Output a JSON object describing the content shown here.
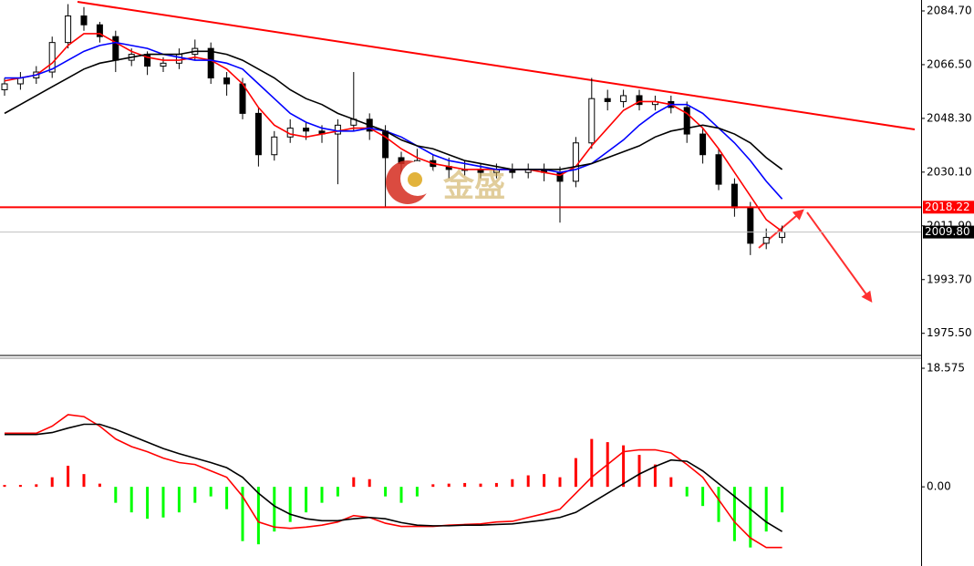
{
  "chart_data": [
    {
      "type": "candlestick",
      "open": [
        2058,
        2060,
        2062,
        2064,
        2074,
        2083,
        2080,
        2076,
        2068,
        2070,
        2066,
        2067,
        2070,
        2072,
        2062,
        2060,
        2050,
        2036,
        2042,
        2045,
        2044,
        2043,
        2046,
        2048,
        2044,
        2035,
        2033,
        2034,
        2032,
        2031,
        2031,
        2030,
        2031,
        2030,
        2031,
        2030,
        2027,
        2040,
        2055,
        2054,
        2056,
        2053,
        2054,
        2052,
        2043,
        2036,
        2026,
        2018,
        2006,
        2008
      ],
      "high": [
        2062,
        2064,
        2066,
        2076,
        2087,
        2086,
        2081,
        2078,
        2072,
        2071,
        2069,
        2072,
        2075,
        2074,
        2064,
        2062,
        2052,
        2044,
        2048,
        2047,
        2046,
        2048,
        2064,
        2050,
        2046,
        2037,
        2038,
        2036,
        2035,
        2034,
        2033,
        2033,
        2033,
        2033,
        2033,
        2032,
        2042,
        2062,
        2058,
        2058,
        2058,
        2056,
        2056,
        2054,
        2045,
        2038,
        2028,
        2020,
        2011,
        2012
      ],
      "low": [
        2056,
        2058,
        2060,
        2062,
        2072,
        2078,
        2074,
        2064,
        2066,
        2063,
        2064,
        2065,
        2068,
        2060,
        2056,
        2048,
        2032,
        2034,
        2040,
        2041,
        2040,
        2026,
        2044,
        2041,
        2018,
        2028,
        2030,
        2029,
        2028,
        2029,
        2028,
        2028,
        2028,
        2028,
        2027,
        2013,
        2025,
        2038,
        2051,
        2052,
        2051,
        2051,
        2050,
        2040,
        2033,
        2024,
        2015,
        2002,
        2004,
        2006
      ],
      "close": [
        2060,
        2062,
        2064,
        2074,
        2083,
        2080,
        2076,
        2068,
        2070,
        2066,
        2067,
        2070,
        2072,
        2062,
        2060,
        2050,
        2036,
        2042,
        2045,
        2044,
        2043,
        2046,
        2048,
        2044,
        2035,
        2033,
        2034,
        2032,
        2031,
        2031,
        2030,
        2031,
        2030,
        2031,
        2030,
        2027,
        2040,
        2055,
        2054,
        2056,
        2053,
        2054,
        2052,
        2043,
        2036,
        2026,
        2018,
        2006,
        2008,
        2009.8
      ],
      "series": [
        {
          "color": "#ff0000",
          "values": [
            2061,
            2062,
            2063,
            2067,
            2073,
            2077,
            2077,
            2074,
            2071,
            2069,
            2068,
            2068,
            2069,
            2068,
            2065,
            2060,
            2052,
            2046,
            2043,
            2042,
            2043,
            2044,
            2045,
            2045,
            2042,
            2038,
            2035,
            2033,
            2032,
            2031,
            2031,
            2031,
            2031,
            2031,
            2030,
            2029,
            2032,
            2039,
            2045,
            2051,
            2054,
            2054,
            2053,
            2050,
            2045,
            2038,
            2030,
            2022,
            2014,
            2010
          ]
        },
        {
          "color": "#0000ff",
          "values": [
            2062,
            2062,
            2063,
            2065,
            2068,
            2071,
            2073,
            2074,
            2073,
            2072,
            2070,
            2069,
            2068,
            2068,
            2067,
            2065,
            2060,
            2055,
            2050,
            2047,
            2045,
            2044,
            2044,
            2045,
            2044,
            2042,
            2039,
            2036,
            2034,
            2033,
            2032,
            2031,
            2031,
            2031,
            2031,
            2030,
            2031,
            2033,
            2037,
            2041,
            2046,
            2050,
            2053,
            2053,
            2050,
            2045,
            2040,
            2034,
            2027,
            2021
          ]
        },
        {
          "color": "#000000",
          "values": [
            2050,
            2053,
            2056,
            2059,
            2062,
            2065,
            2067,
            2068,
            2069,
            2070,
            2070,
            2070,
            2071,
            2071,
            2070,
            2068,
            2065,
            2062,
            2058,
            2055,
            2053,
            2050,
            2048,
            2046,
            2044,
            2041,
            2039,
            2038,
            2036,
            2034,
            2033,
            2032,
            2031,
            2031,
            2031,
            2031,
            2032,
            2033,
            2035,
            2037,
            2039,
            2042,
            2044,
            2045,
            2046,
            2045,
            2043,
            2040,
            2035,
            2031
          ]
        }
      ],
      "ylim": [
        1968.0,
        2088.4
      ],
      "yticks": [
        {
          "value": 2084.7,
          "label": "2084.70"
        },
        {
          "value": 2066.5,
          "label": "2066.50"
        },
        {
          "value": 2048.3,
          "label": "2048.30"
        },
        {
          "value": 2030.1,
          "label": "2030.10"
        },
        {
          "value": 2011.9,
          "label": "2011.90"
        },
        {
          "value": 1993.7,
          "label": "1993.70"
        },
        {
          "value": 1975.5,
          "label": "1975.50"
        }
      ],
      "hlines": [
        {
          "value": 2018.22,
          "label": "2018.22",
          "color": "#ff0000"
        },
        {
          "value": 2009.8,
          "label": "2009.80",
          "color": "#c0c0c0"
        }
      ],
      "watermark": "金盛"
    },
    {
      "type": "macd",
      "values": [
        0.3,
        0.3,
        0.4,
        1.5,
        3.3,
        2.0,
        0.5,
        -2.5,
        -4.0,
        -5.0,
        -4.8,
        -4.0,
        -2.5,
        -1.5,
        -3.5,
        -8.5,
        -9.0,
        -7.0,
        -5.5,
        -4.0,
        -2.5,
        -1.5,
        1.5,
        1.2,
        -1.5,
        -2.5,
        -1.5,
        0.4,
        0.5,
        0.6,
        0.5,
        0.6,
        1.2,
        1.8,
        2.0,
        1.5,
        4.5,
        7.5,
        7.0,
        6.5,
        5.0,
        3.5,
        1.5,
        -1.5,
        -3.0,
        -5.5,
        -8.5,
        -9.5,
        -7.0,
        -4.0
      ],
      "up_color": "#ff0000",
      "down_color": "#00ff00",
      "series": [
        {
          "color": "#ff0000",
          "values": [
            8.4,
            8.4,
            8.4,
            9.5,
            11.3,
            11,
            9.5,
            7.5,
            6.3,
            5.5,
            4.5,
            3.8,
            3.5,
            2.5,
            1.5,
            -1.5,
            -5.5,
            -6.3,
            -6.5,
            -6.3,
            -6,
            -5.5,
            -4.5,
            -4.8,
            -5.7,
            -6.2,
            -6.2,
            -6.2,
            -6,
            -5.9,
            -5.8,
            -5.5,
            -5.4,
            -4.8,
            -4.2,
            -3.5,
            -1,
            1.5,
            3.5,
            5.5,
            5.8,
            5.8,
            5.3,
            3.5,
            1.5,
            -2,
            -5.5,
            -8,
            -9.5,
            -9.5
          ]
        },
        {
          "color": "#000000",
          "values": [
            8.2,
            8.2,
            8.2,
            8.5,
            9.2,
            9.8,
            9.8,
            9,
            8,
            7,
            6,
            5.2,
            4.5,
            3.8,
            3,
            1.5,
            -1,
            -3,
            -4.3,
            -5,
            -5.3,
            -5.3,
            -5,
            -4.8,
            -5,
            -5.6,
            -6,
            -6.1,
            -6.1,
            -6,
            -6,
            -5.9,
            -5.8,
            -5.5,
            -5.2,
            -4.8,
            -4,
            -2.5,
            -1,
            0.5,
            2,
            3.2,
            4.2,
            4,
            2.5,
            0.5,
            -1.5,
            -3.5,
            -5.5,
            -7
          ]
        }
      ],
      "ylim": [
        -12.4,
        20.15
      ],
      "yticks": [
        18.575,
        {
          "value": 0,
          "label": "0.00"
        }
      ]
    }
  ]
}
